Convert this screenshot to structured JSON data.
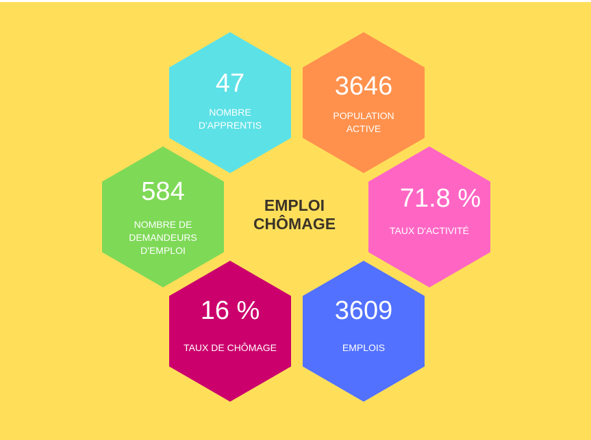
{
  "title": {
    "line1": "EMPLOI",
    "line2": "CHÔMAGE"
  },
  "stats": {
    "apprentis": {
      "value": "47",
      "label_l1": "NOMBRE",
      "label_l2": "D'APPRENTIS",
      "label_l3": "",
      "color": "#5ce1e6"
    },
    "population": {
      "value": "3646",
      "label_l1": "POPULATION",
      "label_l2": "ACTIVE",
      "label_l3": "",
      "color": "#ff914d"
    },
    "demandeurs": {
      "value": "584",
      "label_l1": "NOMBRE DE",
      "label_l2": "DEMANDEURS",
      "label_l3": "D'EMPLOI",
      "color": "#7ed957"
    },
    "activite": {
      "value": "71.8 %",
      "label_l1": "TAUX D'ACTIVITÉ",
      "label_l2": "",
      "label_l3": "",
      "color": "#ff66c4"
    },
    "chomage": {
      "value": "16 %",
      "label_l1": "TAUX DE CHÔMAGE",
      "label_l2": "",
      "label_l3": "",
      "color": "#cb006c"
    },
    "emplois": {
      "value": "3609",
      "label_l1": "EMPLOIS",
      "label_l2": "",
      "label_l3": "",
      "color": "#5271ff"
    }
  },
  "colors": {
    "background": "#ffdf5a",
    "title_text": "#3b3328"
  }
}
